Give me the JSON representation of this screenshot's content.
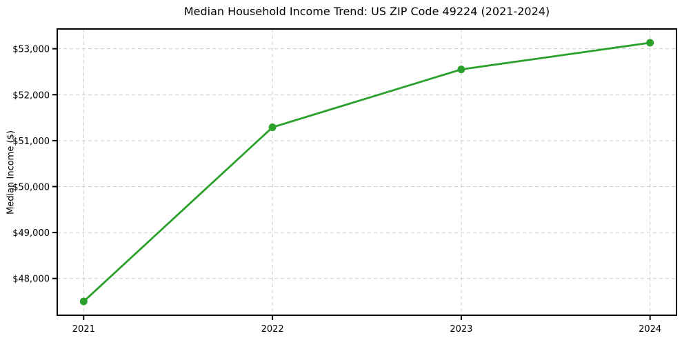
{
  "chart_data": {
    "type": "line",
    "title": "Median Household Income Trend: US ZIP Code 49224 (2021-2024)",
    "xlabel": "",
    "ylabel": "Median Income ($)",
    "x": [
      2021,
      2022,
      2023,
      2024
    ],
    "x_tick_labels": [
      "2021",
      "2022",
      "2023",
      "2024"
    ],
    "series": [
      {
        "name": "Median Household Income",
        "values": [
          47500,
          51290,
          52550,
          53130
        ]
      }
    ],
    "y_ticks": [
      48000,
      49000,
      50000,
      51000,
      52000,
      53000
    ],
    "y_tick_labels": [
      "$48,000",
      "$49,000",
      "$50,000",
      "$51,000",
      "$52,000",
      "$53,000"
    ],
    "xlim": [
      2020.86,
      2024.14
    ],
    "ylim": [
      47200,
      53430
    ],
    "grid": "both-dashed",
    "legend": "none",
    "line_color": "#2ca02c",
    "marker": "circle",
    "grid_color": "#cccccc",
    "axis_color": "#000000",
    "background": "#ffffff"
  }
}
